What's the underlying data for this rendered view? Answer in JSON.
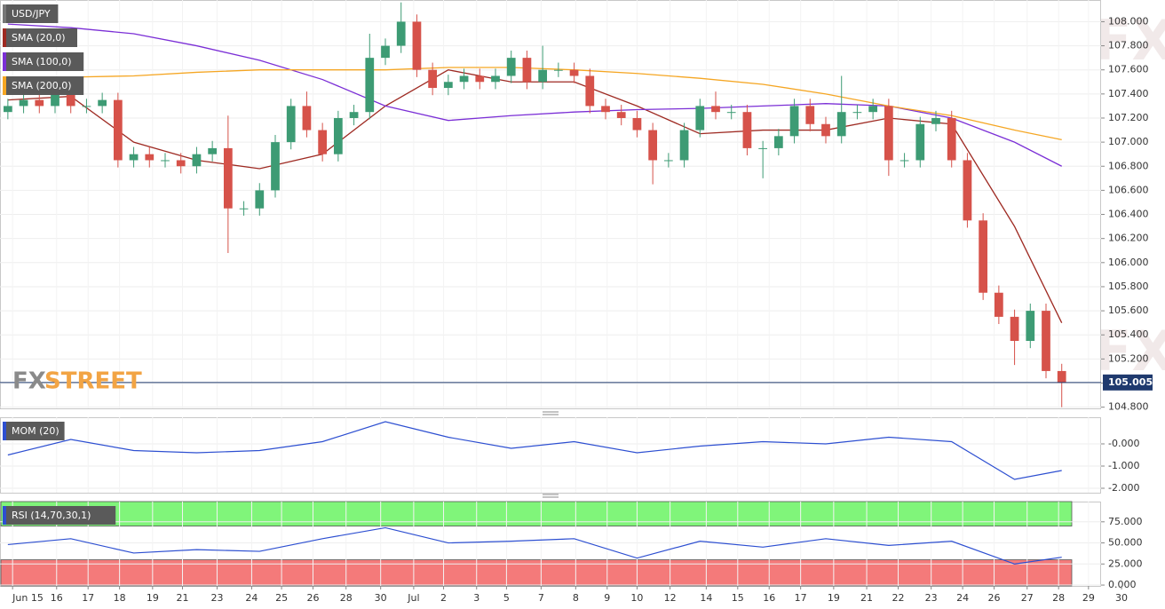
{
  "watermark": "WikiFX",
  "logo": [
    "FX",
    "STREET"
  ],
  "chart_data": [
    {
      "type": "candlestick",
      "series": [
        {
          "name": "USD/JPY",
          "color": "#777777",
          "up_color": "#3d9b74",
          "down_color": "#d6524a",
          "open": [
            107.25,
            107.3,
            107.35,
            107.3,
            107.4,
            107.3,
            107.3,
            107.35,
            106.85,
            106.9,
            106.85,
            106.85,
            106.8,
            106.9,
            106.95,
            106.45,
            106.45,
            106.6,
            107.0,
            107.3,
            107.1,
            106.9,
            107.2,
            107.25,
            107.7,
            107.8,
            108.0,
            107.6,
            107.45,
            107.5,
            107.55,
            107.5,
            107.55,
            107.7,
            107.5,
            107.6,
            107.6,
            107.55,
            107.3,
            107.25,
            107.2,
            107.1,
            106.85,
            106.85,
            107.1,
            107.3,
            107.25,
            107.25,
            106.95,
            106.95,
            107.05,
            107.3,
            107.15,
            107.05,
            107.25,
            107.25,
            107.3,
            106.85,
            106.85,
            107.15,
            107.2,
            106.85,
            106.35,
            105.75,
            105.55,
            105.35,
            105.6,
            105.1
          ],
          "high": [
            107.36,
            107.41,
            107.41,
            107.46,
            107.46,
            107.36,
            107.41,
            107.41,
            106.96,
            106.96,
            106.91,
            106.91,
            106.96,
            107.01,
            107.22,
            106.51,
            106.66,
            107.06,
            107.36,
            107.42,
            107.16,
            107.26,
            107.31,
            107.9,
            107.86,
            108.16,
            108.06,
            107.66,
            107.56,
            107.61,
            107.61,
            107.61,
            107.76,
            107.76,
            107.8,
            107.66,
            107.66,
            107.61,
            107.36,
            107.31,
            107.26,
            107.16,
            106.91,
            107.16,
            107.36,
            107.42,
            107.31,
            107.31,
            107.01,
            107.11,
            107.36,
            107.36,
            107.21,
            107.55,
            107.31,
            107.36,
            107.36,
            106.91,
            107.21,
            107.26,
            107.26,
            106.91,
            106.41,
            105.81,
            105.61,
            105.66,
            105.66,
            105.16
          ],
          "low": [
            107.19,
            107.24,
            107.24,
            107.24,
            107.24,
            107.24,
            107.24,
            106.79,
            106.79,
            106.79,
            106.79,
            106.74,
            106.74,
            106.84,
            106.08,
            106.39,
            106.39,
            106.54,
            106.94,
            107.04,
            106.84,
            106.84,
            107.14,
            107.19,
            107.64,
            107.74,
            107.54,
            107.39,
            107.39,
            107.44,
            107.44,
            107.44,
            107.49,
            107.44,
            107.44,
            107.54,
            107.49,
            107.24,
            107.19,
            107.14,
            107.04,
            106.65,
            106.79,
            106.79,
            107.04,
            107.19,
            107.19,
            106.89,
            106.7,
            106.89,
            106.99,
            107.09,
            106.99,
            106.99,
            107.19,
            107.19,
            106.72,
            106.79,
            106.79,
            107.09,
            106.79,
            106.29,
            105.69,
            105.49,
            105.15,
            105.29,
            105.04,
            104.8
          ],
          "close": [
            107.3,
            107.35,
            107.3,
            107.4,
            107.3,
            107.3,
            107.35,
            106.85,
            106.9,
            106.85,
            106.85,
            106.8,
            106.9,
            106.95,
            106.45,
            106.45,
            106.6,
            107.0,
            107.3,
            107.1,
            106.9,
            107.2,
            107.25,
            107.7,
            107.8,
            108.0,
            107.6,
            107.45,
            107.5,
            107.55,
            107.5,
            107.55,
            107.7,
            107.5,
            107.6,
            107.6,
            107.55,
            107.3,
            107.25,
            107.2,
            107.1,
            106.85,
            106.85,
            107.1,
            107.3,
            107.25,
            107.25,
            106.95,
            106.95,
            107.05,
            107.3,
            107.15,
            107.05,
            107.25,
            107.25,
            107.3,
            106.85,
            106.85,
            107.15,
            107.2,
            106.85,
            106.35,
            105.75,
            105.55,
            105.35,
            105.6,
            105.1,
            105.005
          ]
        }
      ],
      "overlays": [
        {
          "name": "SMA (20,0)",
          "color": "#9e2a22",
          "x": [
            0,
            4,
            8,
            12,
            16,
            20,
            24,
            28,
            32,
            36,
            40,
            44,
            48,
            52,
            56,
            60,
            64,
            67
          ],
          "values": [
            107.35,
            107.38,
            107.0,
            106.85,
            106.78,
            106.9,
            107.3,
            107.6,
            107.5,
            107.5,
            107.3,
            107.07,
            107.1,
            107.1,
            107.2,
            107.15,
            106.3,
            105.5
          ]
        },
        {
          "name": "SMA (100,0)",
          "color": "#7b2fd6",
          "x": [
            0,
            4,
            8,
            12,
            16,
            20,
            24,
            28,
            32,
            36,
            40,
            44,
            48,
            52,
            56,
            60,
            64,
            67
          ],
          "values": [
            107.98,
            107.95,
            107.9,
            107.8,
            107.68,
            107.52,
            107.3,
            107.18,
            107.22,
            107.25,
            107.27,
            107.28,
            107.3,
            107.32,
            107.3,
            107.2,
            107.0,
            106.8
          ]
        },
        {
          "name": "SMA (200,0)",
          "color": "#f5a623",
          "x": [
            0,
            4,
            8,
            12,
            16,
            20,
            24,
            28,
            32,
            36,
            40,
            44,
            48,
            52,
            56,
            60,
            64,
            67
          ],
          "values": [
            107.52,
            107.54,
            107.55,
            107.58,
            107.6,
            107.6,
            107.6,
            107.62,
            107.62,
            107.6,
            107.57,
            107.53,
            107.48,
            107.4,
            107.3,
            107.22,
            107.1,
            107.02
          ]
        }
      ],
      "xlim": [
        -0.5,
        69.5
      ],
      "ylim": [
        104.79,
        108.18
      ],
      "yticks": [
        {
          "value": 108.0,
          "label": "108.000"
        },
        {
          "value": 107.8,
          "label": "107.800"
        },
        {
          "value": 107.6,
          "label": "107.600"
        },
        {
          "value": 107.4,
          "label": "107.400"
        },
        {
          "value": 107.2,
          "label": "107.200"
        },
        {
          "value": 107.0,
          "label": "107.000"
        },
        {
          "value": 106.8,
          "label": "106.800"
        },
        {
          "value": 106.6,
          "label": "106.600"
        },
        {
          "value": 106.4,
          "label": "106.400"
        },
        {
          "value": 106.2,
          "label": "106.200"
        },
        {
          "value": 106.0,
          "label": "106.000"
        },
        {
          "value": 105.8,
          "label": "105.800"
        },
        {
          "value": 105.6,
          "label": "105.600"
        },
        {
          "value": 105.4,
          "label": "105.400"
        },
        {
          "value": 105.2,
          "label": "105.200"
        },
        {
          "value": 105.0,
          "label": "105.000"
        },
        {
          "value": 104.8,
          "label": "104.800"
        }
      ],
      "grid": true
    },
    {
      "type": "line",
      "series": [
        {
          "name": "MOM (20)",
          "color": "#2d4fd1",
          "x": [
            0,
            4,
            8,
            12,
            16,
            20,
            24,
            28,
            32,
            36,
            40,
            44,
            48,
            52,
            56,
            60,
            64,
            67
          ],
          "values": [
            -0.5,
            0.2,
            -0.3,
            -0.4,
            -0.3,
            0.1,
            1.0,
            0.3,
            -0.2,
            0.1,
            -0.4,
            -0.1,
            0.1,
            0.0,
            0.3,
            0.1,
            -1.6,
            -1.2
          ]
        }
      ],
      "xlim": [
        -0.5,
        69.5
      ],
      "ylim": [
        -2.2,
        1.2
      ],
      "yticks": [
        {
          "value": 0,
          "label": "-0.000"
        },
        {
          "value": -1,
          "label": "-1.000"
        },
        {
          "value": -2,
          "label": "-2.000"
        }
      ],
      "grid": true
    },
    {
      "type": "line",
      "series": [
        {
          "name": "RSI (14,70,30,1)",
          "color": "#2d4fd1",
          "x": [
            0,
            4,
            8,
            12,
            16,
            20,
            24,
            28,
            32,
            36,
            40,
            44,
            48,
            52,
            56,
            60,
            64,
            67
          ],
          "values": [
            48,
            55,
            38,
            42,
            40,
            55,
            68,
            50,
            52,
            55,
            32,
            52,
            45,
            55,
            47,
            52,
            25,
            33
          ]
        }
      ],
      "bands": [
        {
          "from": 70,
          "to": 99,
          "color": "#80f57a"
        },
        {
          "from": -1,
          "to": 30,
          "color": "#f47a7a"
        }
      ],
      "xlim": [
        -0.5,
        69.5
      ],
      "ylim": [
        -1,
        99
      ],
      "yticks": [
        {
          "value": 75,
          "label": "75.000"
        },
        {
          "value": 50,
          "label": "50.000"
        },
        {
          "value": 25,
          "label": "25.000"
        },
        {
          "value": 0,
          "label": "0.000"
        }
      ],
      "xticks": [
        {
          "value": 0.3,
          "label": "Jun 15"
        },
        {
          "value": 3.1,
          "label": "16"
        },
        {
          "value": 5.1,
          "label": "17"
        },
        {
          "value": 7.1,
          "label": "18"
        },
        {
          "value": 9.2,
          "label": "19"
        },
        {
          "value": 11.1,
          "label": "21"
        },
        {
          "value": 13.3,
          "label": "23"
        },
        {
          "value": 15.5,
          "label": "24"
        },
        {
          "value": 17.4,
          "label": "25"
        },
        {
          "value": 19.4,
          "label": "26"
        },
        {
          "value": 21.5,
          "label": "28"
        },
        {
          "value": 23.7,
          "label": "30"
        },
        {
          "value": 25.8,
          "label": "Jul"
        },
        {
          "value": 27.7,
          "label": "2"
        },
        {
          "value": 29.8,
          "label": "3"
        },
        {
          "value": 31.7,
          "label": "5"
        },
        {
          "value": 33.9,
          "label": "7"
        },
        {
          "value": 36.1,
          "label": "8"
        },
        {
          "value": 38.1,
          "label": "9"
        },
        {
          "value": 40.0,
          "label": "10"
        },
        {
          "value": 42.1,
          "label": "12"
        },
        {
          "value": 44.4,
          "label": "14"
        },
        {
          "value": 46.4,
          "label": "15"
        },
        {
          "value": 48.4,
          "label": "16"
        },
        {
          "value": 50.4,
          "label": "17"
        },
        {
          "value": 52.5,
          "label": "19"
        },
        {
          "value": 54.6,
          "label": "21"
        },
        {
          "value": 56.6,
          "label": "22"
        },
        {
          "value": 58.7,
          "label": "23"
        },
        {
          "value": 60.7,
          "label": "24"
        },
        {
          "value": 62.7,
          "label": "26"
        },
        {
          "value": 64.8,
          "label": "27"
        },
        {
          "value": 66.8,
          "label": "28"
        },
        {
          "value": 68.7,
          "label": "29"
        },
        {
          "value": 70.8,
          "label": "30"
        }
      ],
      "grid": true
    }
  ]
}
